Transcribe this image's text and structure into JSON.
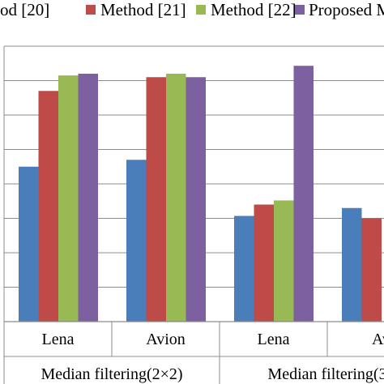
{
  "chart_data": {
    "type": "bar",
    "title": "",
    "xlabel": "",
    "ylabel": "",
    "legend_position": "top",
    "grid": "horizontal",
    "ylim": [
      0,
      8
    ],
    "yticks": [
      0,
      1,
      2,
      3,
      4,
      5,
      6,
      7,
      8
    ],
    "categories": [
      "Lena",
      "Avion",
      "Lena",
      "Avion"
    ],
    "category_labels_visible": [
      "Lena",
      "Avion",
      "Lena",
      "Av"
    ],
    "groups": [
      {
        "label": "Median filtering(2×2)",
        "categories": [
          0,
          1
        ]
      },
      {
        "label": "Median filtering(3",
        "categories": [
          2,
          3
        ]
      }
    ],
    "series": [
      {
        "name": "od [20]",
        "color": "#4a7ebb",
        "values": [
          4.5,
          4.7,
          3.07,
          3.3
        ]
      },
      {
        "name": "Method [21]",
        "color": "#be4b48",
        "values": [
          6.7,
          7.1,
          3.4,
          3.0
        ]
      },
      {
        "name": "Method [22]",
        "color": "#98b954",
        "values": [
          7.15,
          7.2,
          3.52,
          null
        ]
      },
      {
        "name": "Proposed M",
        "color": "#7d60a0",
        "values": [
          7.2,
          7.1,
          7.43,
          null
        ]
      }
    ]
  }
}
